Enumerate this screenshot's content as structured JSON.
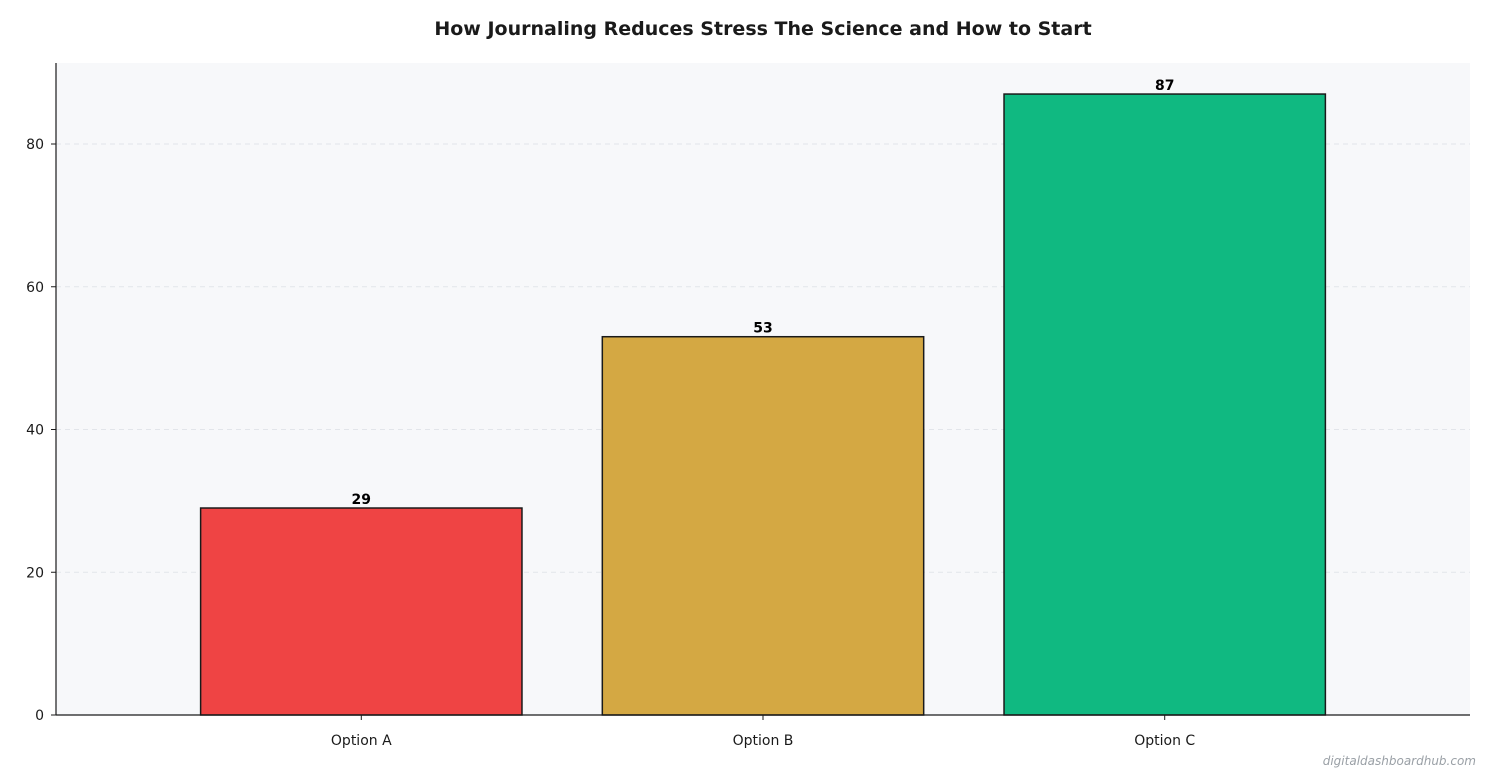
{
  "chart_data": {
    "type": "bar",
    "title": "How Journaling Reduces Stress  The Science and How to Start",
    "xlabel": "",
    "ylabel": "",
    "categories": [
      "Option A",
      "Option B",
      "Option C"
    ],
    "values": [
      29,
      53,
      87
    ],
    "colors": [
      "#ef4444",
      "#d4a843",
      "#10b981"
    ],
    "ylim": [
      0,
      91.35
    ],
    "yticks": [
      0,
      20,
      40,
      60,
      80
    ],
    "grid": true,
    "legend": "none"
  },
  "colors": {
    "plot_background": "#f7f8fa",
    "grid": "#e2e5ea",
    "axis": "#1a1a1a",
    "bar_edge": "#1a1a1a"
  },
  "watermark": "digitaldashboardhub.com"
}
